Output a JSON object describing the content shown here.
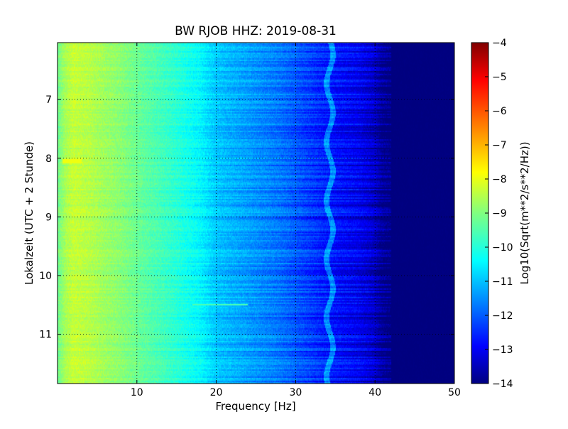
{
  "chart_data": {
    "type": "heatmap",
    "title": "BW RJOB HHZ: 2019-08-31",
    "xlabel": "Frequency [Hz]",
    "ylabel": "Lokalzeit (UTC + 2 Stunde)",
    "xlim": [
      0,
      50
    ],
    "ylim": [
      6.03,
      11.84
    ],
    "y_inverted": true,
    "x_ticks": [
      10,
      20,
      30,
      40,
      50
    ],
    "y_ticks": [
      7,
      8,
      9,
      10,
      11
    ],
    "grid": true,
    "colormap": "jet",
    "colorbar": {
      "label": "Log10(Sqrt(m**2/s**2/Hz))",
      "range": [
        -14,
        -4
      ],
      "ticks": [
        -4,
        -5,
        -6,
        -7,
        -8,
        -9,
        -10,
        -11,
        -12,
        -13,
        -14
      ]
    },
    "spectrum_profile": {
      "frequency_hz": [
        0,
        1,
        2,
        4,
        6,
        8,
        10,
        14,
        18,
        20,
        24,
        28,
        30,
        32,
        34,
        36,
        38,
        39,
        40,
        40.5,
        41,
        42,
        50
      ],
      "log_amplitude": [
        -9.2,
        -8.6,
        -8.3,
        -8.45,
        -8.7,
        -8.9,
        -9.2,
        -9.7,
        -10.3,
        -10.8,
        -11.2,
        -11.6,
        -11.9,
        -12.2,
        -12.5,
        -12.7,
        -12.9,
        -13.1,
        -13.3,
        -13.6,
        -13.8,
        -14,
        -14
      ]
    },
    "annotations": [
      {
        "type": "line_feature",
        "frequency_hz": 34.3,
        "description": "narrow spectral line"
      },
      {
        "type": "hot_spot",
        "frequency_hz": [
          0.6,
          3
        ],
        "time": 8.05,
        "log_amplitude": -7.9
      },
      {
        "type": "horizontal_streak",
        "frequency_hz": [
          17,
          24
        ],
        "time": 10.5,
        "log_amplitude": -9.5
      }
    ]
  }
}
